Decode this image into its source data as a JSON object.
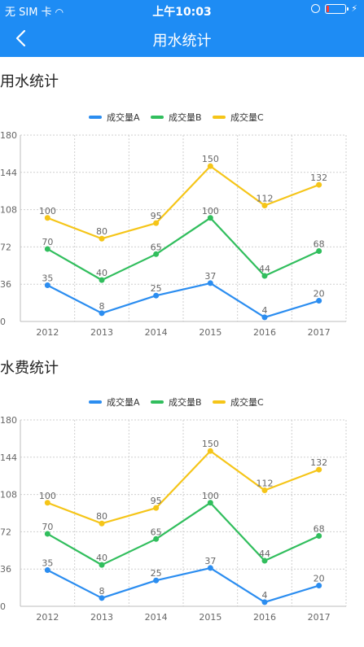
{
  "status": {
    "carrier": "无 SIM 卡",
    "time": "上午10:03"
  },
  "nav": {
    "title": "用水统计"
  },
  "charts": [
    {
      "section_title": "用水统计",
      "chart_data": {
        "type": "line",
        "categories": [
          "2012",
          "2013",
          "2014",
          "2015",
          "2016",
          "2017"
        ],
        "ylim": [
          0,
          180
        ],
        "yticks": [
          0,
          36,
          72,
          108,
          144,
          180
        ],
        "grid": true,
        "legend_position": "top",
        "series": [
          {
            "name": "成交量A",
            "color": "#2b8df0",
            "values": [
              35,
              8,
              25,
              37,
              4,
              20
            ]
          },
          {
            "name": "成交量B",
            "color": "#31be5d",
            "values": [
              70,
              40,
              65,
              100,
              44,
              68
            ]
          },
          {
            "name": "成交量C",
            "color": "#f5c518",
            "values": [
              100,
              80,
              95,
              150,
              112,
              132
            ]
          }
        ]
      }
    },
    {
      "section_title": "水费统计",
      "chart_data": {
        "type": "line",
        "categories": [
          "2012",
          "2013",
          "2014",
          "2015",
          "2016",
          "2017"
        ],
        "ylim": [
          0,
          180
        ],
        "yticks": [
          0,
          36,
          72,
          108,
          144,
          180
        ],
        "grid": true,
        "legend_position": "top",
        "series": [
          {
            "name": "成交量A",
            "color": "#2b8df0",
            "values": [
              35,
              8,
              25,
              37,
              4,
              20
            ]
          },
          {
            "name": "成交量B",
            "color": "#31be5d",
            "values": [
              70,
              40,
              65,
              100,
              44,
              68
            ]
          },
          {
            "name": "成交量C",
            "color": "#f5c518",
            "values": [
              100,
              80,
              95,
              150,
              112,
              132
            ]
          }
        ]
      }
    }
  ]
}
